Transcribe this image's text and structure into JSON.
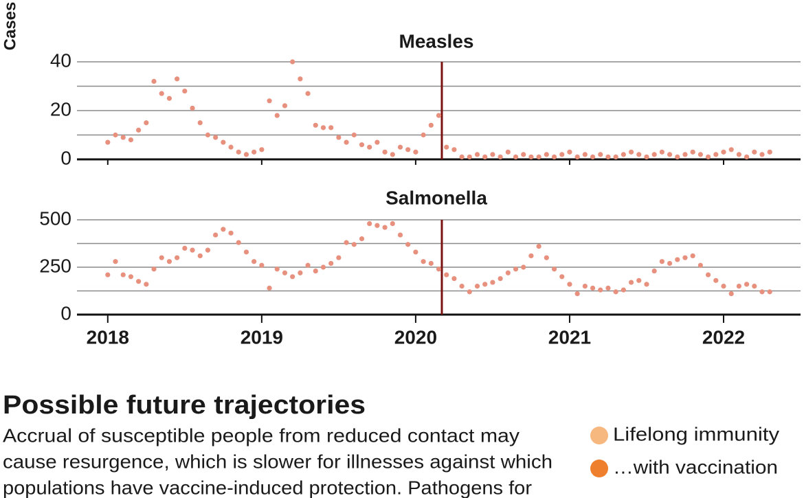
{
  "chart_data": [
    {
      "type": "scatter",
      "title": "Measles",
      "y_label": "Cases",
      "color": "#e8907e",
      "x": [
        2018.0,
        2018.05,
        2018.1,
        2018.15,
        2018.2,
        2018.25,
        2018.3,
        2018.35,
        2018.4,
        2018.45,
        2018.5,
        2018.55,
        2018.6,
        2018.65,
        2018.7,
        2018.75,
        2018.8,
        2018.85,
        2018.9,
        2018.95,
        2019.0,
        2019.05,
        2019.1,
        2019.15,
        2019.2,
        2019.25,
        2019.3,
        2019.35,
        2019.4,
        2019.45,
        2019.5,
        2019.55,
        2019.6,
        2019.65,
        2019.7,
        2019.75,
        2019.8,
        2019.85,
        2019.9,
        2019.95,
        2020.0,
        2020.05,
        2020.1,
        2020.15,
        2020.2,
        2020.25,
        2020.3,
        2020.35,
        2020.4,
        2020.45,
        2020.5,
        2020.55,
        2020.6,
        2020.65,
        2020.7,
        2020.75,
        2020.8,
        2020.85,
        2020.9,
        2020.95,
        2021.0,
        2021.05,
        2021.1,
        2021.15,
        2021.2,
        2021.25,
        2021.3,
        2021.35,
        2021.4,
        2021.45,
        2021.5,
        2021.55,
        2021.6,
        2021.65,
        2021.7,
        2021.75,
        2021.8,
        2021.85,
        2021.9,
        2021.95,
        2022.0,
        2022.05,
        2022.1,
        2022.15,
        2022.2,
        2022.25,
        2022.3
      ],
      "values": [
        7,
        10,
        9,
        8,
        12,
        15,
        32,
        27,
        25,
        33,
        28,
        21,
        15,
        10,
        9,
        7,
        5,
        3,
        2,
        3,
        4,
        24,
        18,
        22,
        40,
        33,
        27,
        14,
        13,
        13,
        9,
        7,
        10,
        6,
        5,
        7,
        3,
        2,
        5,
        4,
        3,
        10,
        14,
        18,
        5,
        4,
        1,
        1,
        2,
        1,
        2,
        1,
        3,
        1,
        2,
        1,
        1,
        2,
        1,
        2,
        3,
        1,
        2,
        1,
        2,
        1,
        1,
        2,
        3,
        2,
        1,
        2,
        3,
        2,
        1,
        2,
        3,
        2,
        1,
        2,
        3,
        4,
        2,
        1,
        3,
        2,
        3
      ],
      "xlim": [
        2017.8,
        2022.5
      ],
      "xticks": [
        2018,
        2019,
        2020,
        2021,
        2022
      ],
      "ylim": [
        0,
        40
      ],
      "yticks": [
        0,
        20,
        40
      ],
      "minor_gridlines": [
        10,
        30
      ],
      "vline": 2020.17,
      "vline_color": "#7a1212"
    },
    {
      "type": "scatter",
      "title": "Salmonella",
      "color": "#e8907e",
      "x": [
        2018.0,
        2018.05,
        2018.1,
        2018.15,
        2018.2,
        2018.25,
        2018.3,
        2018.35,
        2018.4,
        2018.45,
        2018.5,
        2018.55,
        2018.6,
        2018.65,
        2018.7,
        2018.75,
        2018.8,
        2018.85,
        2018.9,
        2018.95,
        2019.0,
        2019.05,
        2019.1,
        2019.15,
        2019.2,
        2019.25,
        2019.3,
        2019.35,
        2019.4,
        2019.45,
        2019.5,
        2019.55,
        2019.6,
        2019.65,
        2019.7,
        2019.75,
        2019.8,
        2019.85,
        2019.9,
        2019.95,
        2020.0,
        2020.05,
        2020.1,
        2020.15,
        2020.2,
        2020.25,
        2020.3,
        2020.35,
        2020.4,
        2020.45,
        2020.5,
        2020.55,
        2020.6,
        2020.65,
        2020.7,
        2020.75,
        2020.8,
        2020.85,
        2020.9,
        2020.95,
        2021.0,
        2021.05,
        2021.1,
        2021.15,
        2021.2,
        2021.25,
        2021.3,
        2021.35,
        2021.4,
        2021.45,
        2021.5,
        2021.55,
        2021.6,
        2021.65,
        2021.7,
        2021.75,
        2021.8,
        2021.85,
        2021.9,
        2021.95,
        2022.0,
        2022.05,
        2022.1,
        2022.15,
        2022.2,
        2022.25,
        2022.3
      ],
      "values": [
        210,
        280,
        210,
        200,
        175,
        160,
        240,
        300,
        280,
        300,
        350,
        340,
        310,
        340,
        420,
        450,
        430,
        380,
        330,
        280,
        260,
        140,
        240,
        220,
        200,
        220,
        260,
        230,
        250,
        270,
        300,
        380,
        370,
        400,
        480,
        470,
        460,
        480,
        420,
        370,
        330,
        280,
        270,
        240,
        210,
        190,
        150,
        120,
        150,
        160,
        170,
        190,
        220,
        240,
        250,
        310,
        360,
        300,
        240,
        200,
        160,
        110,
        150,
        140,
        130,
        140,
        120,
        130,
        170,
        180,
        160,
        230,
        280,
        270,
        290,
        300,
        310,
        260,
        210,
        180,
        150,
        110,
        150,
        160,
        150,
        120,
        120
      ],
      "xlim": [
        2017.8,
        2022.5
      ],
      "xticks": [
        2018,
        2019,
        2020,
        2021,
        2022
      ],
      "ylim": [
        0,
        500
      ],
      "yticks": [
        0,
        250,
        500
      ],
      "minor_gridlines": [
        125,
        375
      ],
      "vline": 2020.17,
      "vline_color": "#7a1212"
    }
  ],
  "section": {
    "title": "Possible future trajectories",
    "lines": [
      "Accrual of susceptible people from reduced contact may",
      "cause resurgence, which is slower for illnesses against which",
      "populations have vaccine-induced protection. Pathogens for"
    ],
    "legend": [
      {
        "name": "Lifelong immunity",
        "color": "#f7b880"
      },
      {
        "name": "…with vaccination",
        "color": "#ee7f2c"
      }
    ]
  }
}
